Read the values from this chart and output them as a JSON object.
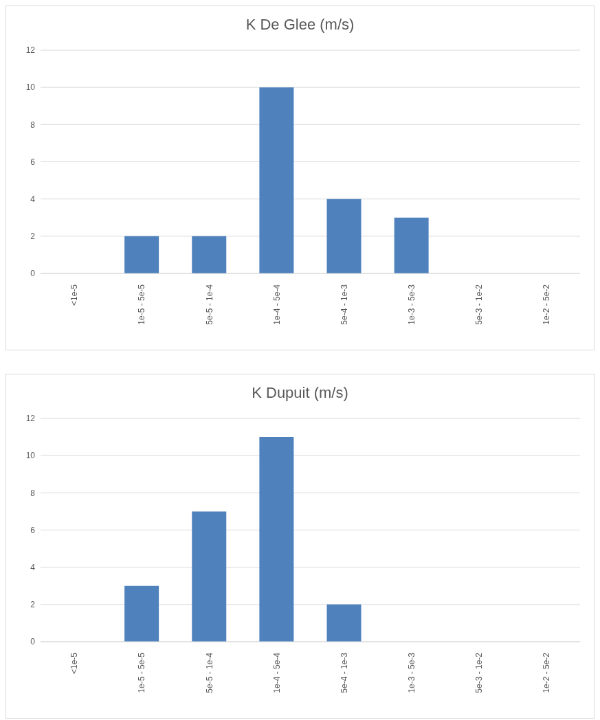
{
  "chart_data": [
    {
      "type": "bar",
      "title": "K De Glee (m/s)",
      "categories": [
        "<1e-5",
        "1e-5 - 5e-5",
        "5e-5 - 1e-4",
        "1e-4 - 5e-4",
        "5e-4 - 1e-3",
        "1e-3 - 5e-3",
        "5e-3 - 1e-2",
        "1e-2 - 5e-2"
      ],
      "values": [
        0,
        2,
        2,
        10,
        4,
        3,
        0,
        0
      ],
      "color": "#4f81bd",
      "ylim": [
        0,
        12
      ],
      "yticks": [
        0,
        2,
        4,
        6,
        8,
        10,
        12
      ],
      "grid": "y"
    },
    {
      "type": "bar",
      "title": "K Dupuit (m/s)",
      "categories": [
        "<1e-5",
        "1e-5 - 5e-5",
        "5e-5 - 1e-4",
        "1e-4 - 5e-4",
        "5e-4 - 1e-3",
        "1e-3 - 5e-3",
        "5e-3 - 1e-2",
        "1e-2 - 5e-2"
      ],
      "values": [
        0,
        3,
        7,
        11,
        2,
        0,
        0,
        0
      ],
      "color": "#4f81bd",
      "ylim": [
        0,
        12
      ],
      "yticks": [
        0,
        2,
        4,
        6,
        8,
        10,
        12
      ],
      "grid": "y"
    }
  ]
}
